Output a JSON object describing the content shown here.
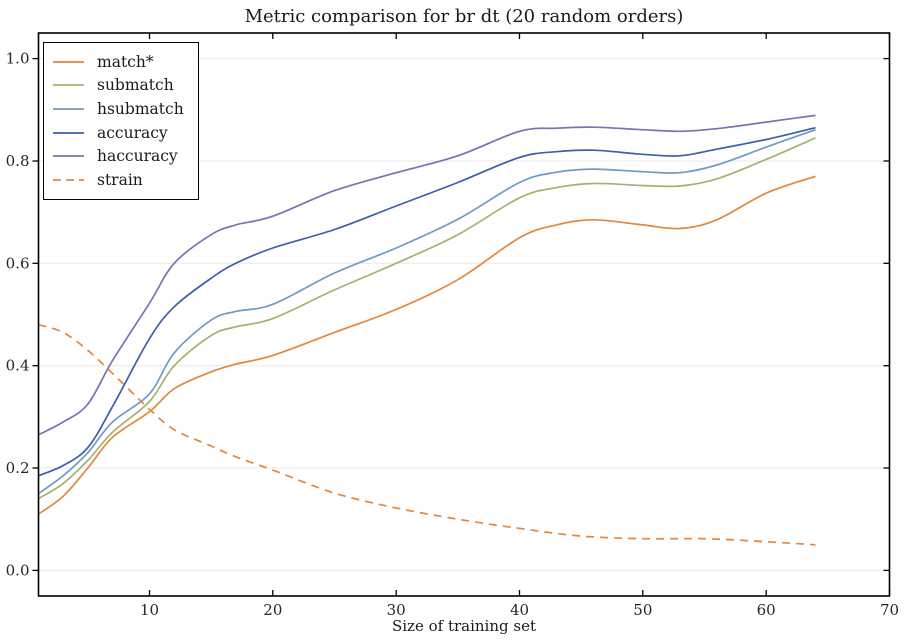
{
  "chart_data": {
    "type": "line",
    "title": "Metric comparison for br dt (20 random orders)",
    "xlabel": "Size of training set",
    "ylabel": "",
    "xlim": [
      1,
      70
    ],
    "ylim": [
      -0.05,
      1.05
    ],
    "xticks": [
      10,
      20,
      30,
      40,
      50,
      60,
      70
    ],
    "xtick_labels": [
      "10",
      "20",
      "30",
      "40",
      "50",
      "60",
      "70"
    ],
    "yticks": [
      0.0,
      0.2,
      0.4,
      0.6,
      0.8,
      1.0
    ],
    "ytick_labels": [
      "0.0",
      "0.2",
      "0.4",
      "0.6",
      "0.8",
      "1.0"
    ],
    "grid": "horizontal-only",
    "grid_color": "#e9e9e9",
    "spine_color": "#000000",
    "background": "#ffffff",
    "legend_position": "upper-left",
    "series": [
      {
        "name": "match*",
        "color": "#e2873c",
        "dash": "solid",
        "x": [
          1,
          3,
          5,
          7,
          10,
          12,
          15,
          17,
          20,
          25,
          30,
          35,
          40,
          43,
          46,
          50,
          53,
          56,
          60,
          64
        ],
        "y": [
          0.11,
          0.145,
          0.2,
          0.26,
          0.31,
          0.355,
          0.388,
          0.403,
          0.42,
          0.465,
          0.51,
          0.568,
          0.65,
          0.675,
          0.685,
          0.675,
          0.668,
          0.685,
          0.737,
          0.77
        ]
      },
      {
        "name": "submatch",
        "color": "#a5b16f",
        "dash": "solid",
        "x": [
          1,
          3,
          5,
          7,
          10,
          12,
          15,
          17,
          20,
          25,
          30,
          35,
          40,
          43,
          46,
          50,
          53,
          56,
          60,
          64
        ],
        "y": [
          0.14,
          0.17,
          0.215,
          0.27,
          0.33,
          0.4,
          0.459,
          0.476,
          0.492,
          0.548,
          0.6,
          0.656,
          0.728,
          0.748,
          0.756,
          0.752,
          0.751,
          0.765,
          0.803,
          0.845
        ]
      },
      {
        "name": "hsubmatch",
        "color": "#6f9bc4",
        "dash": "solid",
        "x": [
          1,
          3,
          5,
          7,
          10,
          12,
          15,
          17,
          20,
          25,
          30,
          35,
          40,
          43,
          46,
          50,
          53,
          56,
          60,
          64
        ],
        "y": [
          0.15,
          0.185,
          0.23,
          0.29,
          0.345,
          0.425,
          0.489,
          0.506,
          0.52,
          0.581,
          0.63,
          0.686,
          0.758,
          0.778,
          0.784,
          0.779,
          0.777,
          0.792,
          0.827,
          0.861
        ]
      },
      {
        "name": "accuracy",
        "color": "#3d5dad",
        "dash": "solid",
        "x": [
          1,
          3,
          5,
          7,
          10,
          12,
          15,
          17,
          20,
          25,
          30,
          35,
          40,
          43,
          46,
          50,
          53,
          56,
          60,
          64
        ],
        "y": [
          0.185,
          0.205,
          0.24,
          0.32,
          0.453,
          0.515,
          0.571,
          0.6,
          0.63,
          0.666,
          0.712,
          0.758,
          0.807,
          0.818,
          0.821,
          0.813,
          0.81,
          0.823,
          0.842,
          0.865
        ]
      },
      {
        "name": "haccuracy",
        "color": "#7b71b3",
        "dash": "solid",
        "x": [
          1,
          3,
          5,
          7,
          10,
          12,
          15,
          17,
          20,
          25,
          30,
          35,
          40,
          43,
          46,
          50,
          53,
          56,
          60,
          64
        ],
        "y": [
          0.265,
          0.29,
          0.325,
          0.41,
          0.522,
          0.6,
          0.656,
          0.675,
          0.692,
          0.742,
          0.777,
          0.81,
          0.858,
          0.864,
          0.866,
          0.861,
          0.858,
          0.863,
          0.876,
          0.889
        ]
      },
      {
        "name": "strain",
        "color": "#e2873c",
        "dash": "dashed",
        "x": [
          1,
          3,
          5,
          7,
          10,
          12,
          15,
          17,
          20,
          25,
          30,
          35,
          40,
          45,
          50,
          55,
          60,
          64
        ],
        "y": [
          0.48,
          0.465,
          0.43,
          0.385,
          0.315,
          0.275,
          0.243,
          0.222,
          0.196,
          0.151,
          0.122,
          0.1,
          0.082,
          0.067,
          0.062,
          0.062,
          0.056,
          0.05
        ]
      }
    ]
  }
}
